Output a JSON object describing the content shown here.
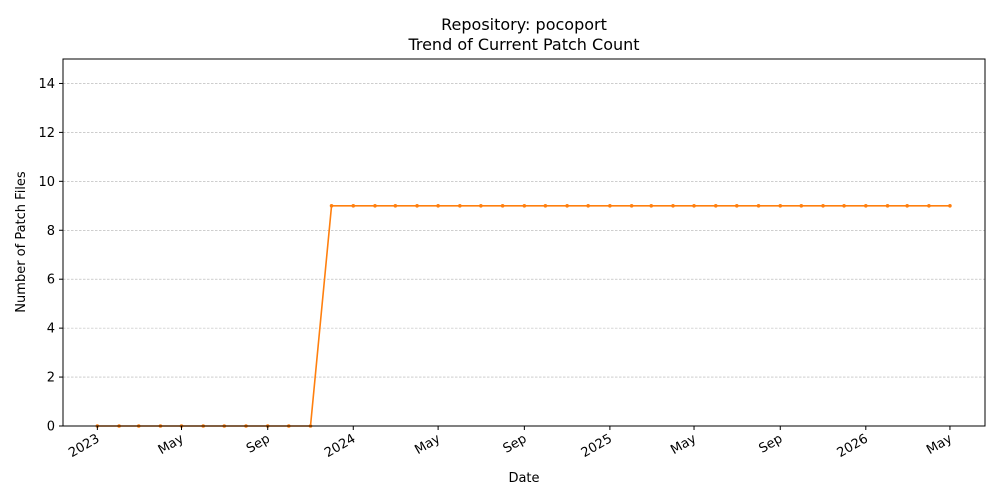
{
  "chart_data": {
    "type": "line",
    "title_line1": "Repository: pocoport",
    "title_line2": "Trend of Current Patch Count",
    "xlabel": "Date",
    "ylabel": "Number of Patch Files",
    "ylim": [
      0,
      15
    ],
    "y_ticks": [
      0,
      2,
      4,
      6,
      8,
      10,
      12,
      14
    ],
    "x_ticks": [
      {
        "date": "2023-01-01",
        "label": "2023"
      },
      {
        "date": "2023-05-01",
        "label": "May"
      },
      {
        "date": "2023-09-01",
        "label": "Sep"
      },
      {
        "date": "2024-01-01",
        "label": "2024"
      },
      {
        "date": "2024-05-01",
        "label": "May"
      },
      {
        "date": "2024-09-01",
        "label": "Sep"
      },
      {
        "date": "2025-01-01",
        "label": "2025"
      },
      {
        "date": "2025-05-01",
        "label": "May"
      },
      {
        "date": "2025-09-01",
        "label": "Sep"
      },
      {
        "date": "2026-01-01",
        "label": "2026"
      },
      {
        "date": "2026-05-01",
        "label": "May"
      }
    ],
    "xlim": [
      "2022-11-13",
      "2026-06-20"
    ],
    "grid": "y-dashed",
    "color": "#ff7f0e",
    "series": [
      {
        "x": [
          "2023-01-01",
          "2023-02-01",
          "2023-03-01",
          "2023-04-01",
          "2023-05-01",
          "2023-06-01",
          "2023-07-01",
          "2023-08-01",
          "2023-09-01",
          "2023-10-01",
          "2023-11-01",
          "2023-12-01",
          "2024-01-01",
          "2024-02-01",
          "2024-03-01",
          "2024-04-01",
          "2024-05-01",
          "2024-06-01",
          "2024-07-01",
          "2024-08-01",
          "2024-09-01",
          "2024-10-01",
          "2024-11-01",
          "2024-12-01",
          "2025-01-01",
          "2025-02-01",
          "2025-03-01",
          "2025-04-01",
          "2025-05-01",
          "2025-06-01",
          "2025-07-01",
          "2025-08-01",
          "2025-09-01",
          "2025-10-01",
          "2025-11-01",
          "2025-12-01",
          "2026-01-01",
          "2026-02-01",
          "2026-03-01",
          "2026-04-01",
          "2026-05-01"
        ],
        "values": [
          0,
          0,
          0,
          0,
          0,
          0,
          0,
          0,
          0,
          0,
          0,
          9,
          9,
          9,
          9,
          9,
          9,
          9,
          9,
          9,
          9,
          9,
          9,
          9,
          9,
          9,
          9,
          9,
          9,
          9,
          9,
          9,
          9,
          9,
          9,
          9,
          9,
          9,
          9,
          9,
          9
        ]
      }
    ]
  }
}
